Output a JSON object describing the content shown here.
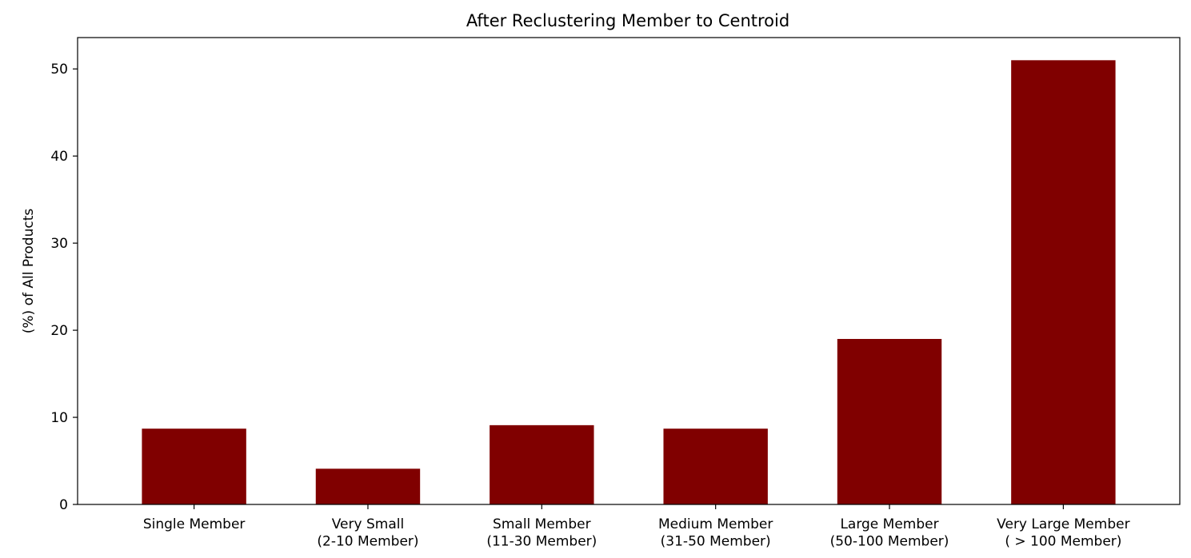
{
  "chart_data": {
    "type": "bar",
    "title": "After Reclustering Member to Centroid",
    "xlabel": "",
    "ylabel": "(%) of All Products",
    "categories": [
      [
        "Single Member"
      ],
      [
        "Very Small",
        "(2-10 Member)"
      ],
      [
        "Small Member",
        "(11-30 Member)"
      ],
      [
        "Medium Member",
        "(31-50 Member)"
      ],
      [
        "Large Member",
        "(50-100 Member)"
      ],
      [
        "Very Large Member",
        "( > 100 Member)"
      ]
    ],
    "values": [
      8.7,
      4.1,
      9.1,
      8.7,
      19.0,
      51.0
    ],
    "ylim": [
      0,
      53.6
    ],
    "yticks": [
      0,
      10,
      20,
      30,
      40,
      50
    ],
    "bar_color": "#800000",
    "grid": false,
    "legend": "none"
  }
}
